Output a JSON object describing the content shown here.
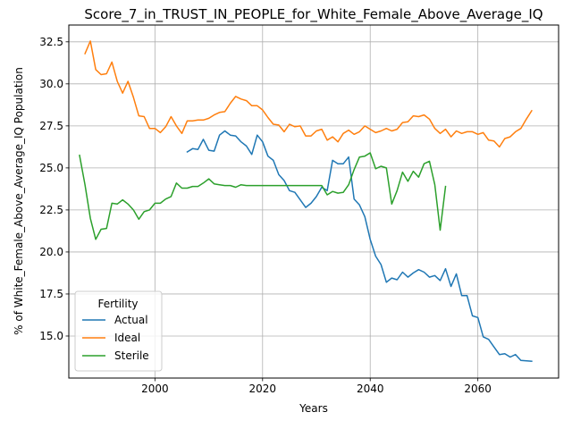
{
  "chart_data": {
    "type": "line",
    "title": "Score_7_in_TRUST_IN_PEOPLE_for_White_Female_Above_Average_IQ",
    "xlabel": "Years",
    "ylabel": "% of White_Female_Above_Average_IQ Population",
    "xlim": [
      1984,
      2075
    ],
    "ylim": [
      12.5,
      33.5
    ],
    "xticks": [
      2000,
      2020,
      2040,
      2060
    ],
    "yticks": [
      15.0,
      17.5,
      20.0,
      22.5,
      25.0,
      27.5,
      30.0,
      32.5
    ],
    "xtick_labels": [
      "2000",
      "2020",
      "2040",
      "2060"
    ],
    "ytick_labels": [
      "15.0",
      "17.5",
      "20.0",
      "22.5",
      "25.0",
      "27.5",
      "30.0",
      "32.5"
    ],
    "grid": true,
    "legend": {
      "title": "Fertility",
      "position": "lower-left"
    },
    "series": [
      {
        "name": "Actual",
        "color": "#1f77b4",
        "points": [
          [
            2006,
            25.95
          ],
          [
            2007,
            26.15
          ],
          [
            2008,
            26.1
          ],
          [
            2009,
            26.7
          ],
          [
            2010,
            26.05
          ],
          [
            2011,
            26.0
          ],
          [
            2012,
            26.95
          ],
          [
            2013,
            27.2
          ],
          [
            2014,
            26.95
          ],
          [
            2015,
            26.9
          ],
          [
            2016,
            26.55
          ],
          [
            2017,
            26.3
          ],
          [
            2018,
            25.8
          ],
          [
            2019,
            26.95
          ],
          [
            2020,
            26.55
          ],
          [
            2021,
            25.7
          ],
          [
            2022,
            25.45
          ],
          [
            2023,
            24.6
          ],
          [
            2024,
            24.25
          ],
          [
            2025,
            23.65
          ],
          [
            2026,
            23.55
          ],
          [
            2027,
            23.1
          ],
          [
            2028,
            22.65
          ],
          [
            2029,
            22.9
          ],
          [
            2030,
            23.3
          ],
          [
            2031,
            23.85
          ],
          [
            2032,
            23.65
          ],
          [
            2033,
            25.45
          ],
          [
            2034,
            25.25
          ],
          [
            2035,
            25.25
          ],
          [
            2036,
            25.65
          ],
          [
            2037,
            23.15
          ],
          [
            2038,
            22.8
          ],
          [
            2039,
            22.1
          ],
          [
            2040,
            20.75
          ],
          [
            2041,
            19.75
          ],
          [
            2042,
            19.25
          ],
          [
            2043,
            18.2
          ],
          [
            2044,
            18.45
          ],
          [
            2045,
            18.35
          ],
          [
            2046,
            18.8
          ],
          [
            2047,
            18.5
          ],
          [
            2048,
            18.75
          ],
          [
            2049,
            18.95
          ],
          [
            2050,
            18.8
          ],
          [
            2051,
            18.5
          ],
          [
            2052,
            18.6
          ],
          [
            2053,
            18.3
          ],
          [
            2054,
            19.0
          ],
          [
            2055,
            17.95
          ],
          [
            2056,
            18.7
          ],
          [
            2057,
            17.4
          ],
          [
            2058,
            17.4
          ],
          [
            2059,
            16.2
          ],
          [
            2060,
            16.1
          ],
          [
            2061,
            14.95
          ],
          [
            2062,
            14.8
          ],
          [
            2063,
            14.35
          ],
          [
            2064,
            13.9
          ],
          [
            2065,
            13.95
          ],
          [
            2066,
            13.75
          ],
          [
            2067,
            13.9
          ],
          [
            2068,
            13.55
          ],
          [
            2070,
            13.5
          ]
        ]
      },
      {
        "name": "Ideal",
        "color": "#ff7f0e",
        "points": [
          [
            1987,
            31.8
          ],
          [
            1988,
            32.55
          ],
          [
            1989,
            30.85
          ],
          [
            1990,
            30.55
          ],
          [
            1991,
            30.6
          ],
          [
            1992,
            31.3
          ],
          [
            1993,
            30.15
          ],
          [
            1994,
            29.45
          ],
          [
            1995,
            30.15
          ],
          [
            1996,
            29.2
          ],
          [
            1997,
            28.1
          ],
          [
            1998,
            28.05
          ],
          [
            1999,
            27.35
          ],
          [
            2000,
            27.35
          ],
          [
            2001,
            27.1
          ],
          [
            2002,
            27.45
          ],
          [
            2003,
            28.05
          ],
          [
            2004,
            27.5
          ],
          [
            2005,
            27.05
          ],
          [
            2006,
            27.8
          ],
          [
            2007,
            27.8
          ],
          [
            2008,
            27.85
          ],
          [
            2009,
            27.85
          ],
          [
            2010,
            27.95
          ],
          [
            2011,
            28.15
          ],
          [
            2012,
            28.3
          ],
          [
            2013,
            28.35
          ],
          [
            2014,
            28.85
          ],
          [
            2015,
            29.25
          ],
          [
            2016,
            29.1
          ],
          [
            2017,
            29.0
          ],
          [
            2018,
            28.7
          ],
          [
            2019,
            28.7
          ],
          [
            2020,
            28.45
          ],
          [
            2021,
            28.0
          ],
          [
            2022,
            27.6
          ],
          [
            2023,
            27.55
          ],
          [
            2024,
            27.15
          ],
          [
            2025,
            27.6
          ],
          [
            2026,
            27.45
          ],
          [
            2027,
            27.5
          ],
          [
            2028,
            26.9
          ],
          [
            2029,
            26.9
          ],
          [
            2030,
            27.2
          ],
          [
            2031,
            27.3
          ],
          [
            2032,
            26.65
          ],
          [
            2033,
            26.85
          ],
          [
            2034,
            26.55
          ],
          [
            2035,
            27.05
          ],
          [
            2036,
            27.25
          ],
          [
            2037,
            27.0
          ],
          [
            2038,
            27.15
          ],
          [
            2039,
            27.5
          ],
          [
            2040,
            27.3
          ],
          [
            2041,
            27.1
          ],
          [
            2042,
            27.2
          ],
          [
            2043,
            27.35
          ],
          [
            2044,
            27.2
          ],
          [
            2045,
            27.3
          ],
          [
            2046,
            27.7
          ],
          [
            2047,
            27.75
          ],
          [
            2048,
            28.1
          ],
          [
            2049,
            28.05
          ],
          [
            2050,
            28.15
          ],
          [
            2051,
            27.9
          ],
          [
            2052,
            27.35
          ],
          [
            2053,
            27.05
          ],
          [
            2054,
            27.3
          ],
          [
            2055,
            26.85
          ],
          [
            2056,
            27.2
          ],
          [
            2057,
            27.05
          ],
          [
            2058,
            27.15
          ],
          [
            2059,
            27.15
          ],
          [
            2060,
            27.0
          ],
          [
            2061,
            27.1
          ],
          [
            2062,
            26.65
          ],
          [
            2063,
            26.6
          ],
          [
            2064,
            26.25
          ],
          [
            2065,
            26.75
          ],
          [
            2066,
            26.85
          ],
          [
            2067,
            27.15
          ],
          [
            2068,
            27.35
          ],
          [
            2069,
            27.9
          ],
          [
            2070,
            28.4
          ]
        ]
      },
      {
        "name": "Sterile",
        "color": "#2ca02c",
        "points": [
          [
            1986,
            25.75
          ],
          [
            1987,
            24.0
          ],
          [
            1988,
            22.0
          ],
          [
            1989,
            20.75
          ],
          [
            1990,
            21.35
          ],
          [
            1991,
            21.4
          ],
          [
            1992,
            22.9
          ],
          [
            1993,
            22.85
          ],
          [
            1994,
            23.1
          ],
          [
            1995,
            22.85
          ],
          [
            1996,
            22.5
          ],
          [
            1997,
            21.95
          ],
          [
            1998,
            22.4
          ],
          [
            1999,
            22.5
          ],
          [
            2000,
            22.9
          ],
          [
            2001,
            22.9
          ],
          [
            2002,
            23.15
          ],
          [
            2003,
            23.3
          ],
          [
            2004,
            24.1
          ],
          [
            2005,
            23.8
          ],
          [
            2006,
            23.8
          ],
          [
            2007,
            23.9
          ],
          [
            2008,
            23.9
          ],
          [
            2009,
            24.1
          ],
          [
            2010,
            24.35
          ],
          [
            2011,
            24.05
          ],
          [
            2012,
            24.0
          ],
          [
            2013,
            23.95
          ],
          [
            2014,
            23.95
          ],
          [
            2015,
            23.85
          ],
          [
            2016,
            24.0
          ],
          [
            2017,
            23.95
          ],
          [
            2018,
            23.95
          ],
          [
            2019,
            23.95
          ],
          [
            2020,
            23.95
          ],
          [
            2021,
            23.95
          ],
          [
            2022,
            23.95
          ],
          [
            2023,
            23.95
          ],
          [
            2024,
            23.95
          ],
          [
            2025,
            23.95
          ],
          [
            2026,
            23.95
          ],
          [
            2027,
            23.95
          ],
          [
            2028,
            23.95
          ],
          [
            2029,
            23.95
          ],
          [
            2030,
            23.95
          ],
          [
            2031,
            23.95
          ],
          [
            2032,
            23.4
          ],
          [
            2033,
            23.6
          ],
          [
            2034,
            23.5
          ],
          [
            2035,
            23.55
          ],
          [
            2036,
            24.0
          ],
          [
            2037,
            24.9
          ],
          [
            2038,
            25.65
          ],
          [
            2039,
            25.7
          ],
          [
            2040,
            25.9
          ],
          [
            2041,
            24.95
          ],
          [
            2042,
            25.1
          ],
          [
            2043,
            25.0
          ],
          [
            2044,
            22.85
          ],
          [
            2045,
            23.65
          ],
          [
            2046,
            24.75
          ],
          [
            2047,
            24.2
          ],
          [
            2048,
            24.8
          ],
          [
            2049,
            24.45
          ],
          [
            2050,
            25.25
          ],
          [
            2051,
            25.4
          ],
          [
            2052,
            24.0
          ],
          [
            2053,
            21.3
          ],
          [
            2054,
            23.9
          ]
        ]
      }
    ]
  }
}
